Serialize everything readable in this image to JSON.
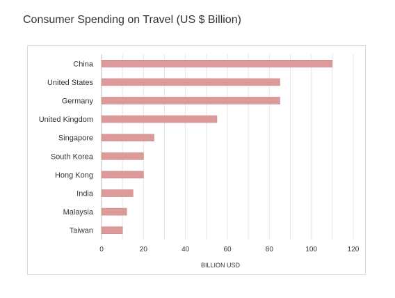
{
  "title": "Consumer Spending on Travel (US $ Billion)",
  "colors": {
    "bar": "#dd9a9a",
    "bar_stroke": "#c98585",
    "grid": "#e6e6e6"
  },
  "chart_data": {
    "type": "bar",
    "orientation": "horizontal",
    "title": "Consumer Spending on Travel (US $ Billion)",
    "xlabel": "BILLION USD",
    "ylabel": "",
    "categories": [
      "China",
      "United States",
      "Germany",
      "United Kingdom",
      "Singapore",
      "South Korea",
      "Hong Kong",
      "India",
      "Malaysia",
      "Taiwan"
    ],
    "values": [
      110,
      85,
      85,
      55,
      25,
      20,
      20,
      15,
      12,
      10
    ],
    "xlim": [
      0,
      120
    ],
    "xticks": [
      0,
      20,
      40,
      60,
      80,
      100,
      120
    ],
    "grid": true,
    "legend": "none"
  }
}
